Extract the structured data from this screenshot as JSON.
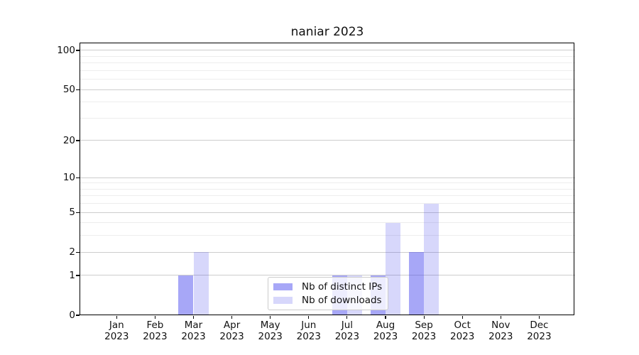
{
  "title": "naniar 2023",
  "chart_data": {
    "type": "bar",
    "title": "naniar 2023",
    "categories": [
      "Jan 2023",
      "Feb 2023",
      "Mar 2023",
      "Apr 2023",
      "May 2023",
      "Jun 2023",
      "Jul 2023",
      "Aug 2023",
      "Sep 2023",
      "Oct 2023",
      "Nov 2023",
      "Dec 2023"
    ],
    "series": [
      {
        "name": "Nb of distinct IPs",
        "base_color": "#4444ee",
        "alpha": 0.47,
        "values": [
          0,
          0,
          1,
          0,
          0,
          0,
          1,
          1,
          2,
          0,
          0,
          0
        ]
      },
      {
        "name": "Nb of downloads",
        "base_color": "#4444ee",
        "alpha": 0.21,
        "values": [
          0,
          0,
          2,
          0,
          0,
          0,
          1,
          4,
          6,
          0,
          0,
          0
        ]
      }
    ],
    "xlabel": "",
    "ylabel": "",
    "yscale": "log1p",
    "ylim": [
      0,
      114
    ],
    "y_major_ticks": [
      0,
      1,
      2,
      5,
      10,
      20,
      50,
      100
    ],
    "y_minor_gridlines": [
      3,
      4,
      6,
      7,
      8,
      9,
      30,
      40,
      60,
      70,
      80,
      90
    ],
    "grid": "both",
    "legend_position": "lower center"
  },
  "colors": {
    "grid_major": "#cdcdcd",
    "grid_minor": "#ededed",
    "axis": "#000000",
    "legend_border": "#cccccc"
  }
}
